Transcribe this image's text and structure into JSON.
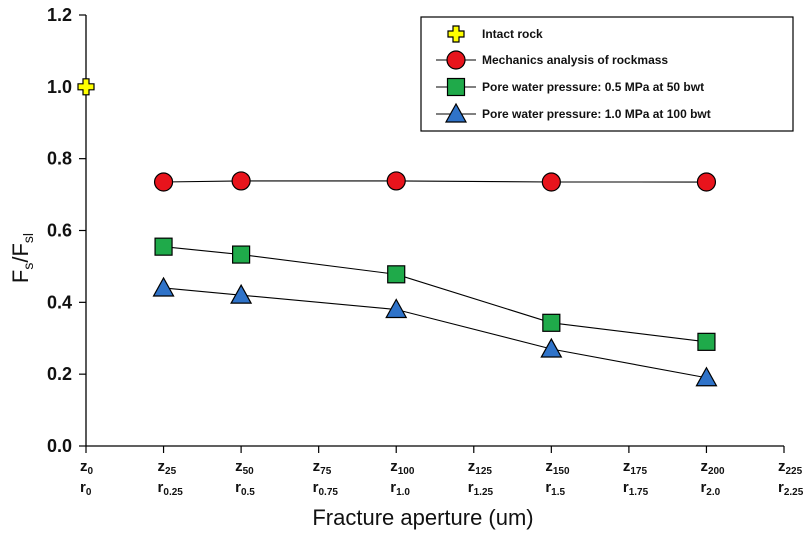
{
  "chart_data": {
    "type": "line",
    "x": [
      0,
      25,
      50,
      75,
      100,
      125,
      150,
      175,
      200,
      225
    ],
    "x_tick_labels": [
      {
        "z": "z",
        "z_sub": "0",
        "r": "r",
        "r_sub": "0"
      },
      {
        "z": "z",
        "z_sub": "25",
        "r": "r",
        "r_sub": "0.25"
      },
      {
        "z": "z",
        "z_sub": "50",
        "r": "r",
        "r_sub": "0.5"
      },
      {
        "z": "z",
        "z_sub": "75",
        "r": "r",
        "r_sub": "0.75"
      },
      {
        "z": "z",
        "z_sub": "100",
        "r": "r",
        "r_sub": "1.0"
      },
      {
        "z": "z",
        "z_sub": "125",
        "r": "r",
        "r_sub": "1.25"
      },
      {
        "z": "z",
        "z_sub": "150",
        "r": "r",
        "r_sub": "1.5"
      },
      {
        "z": "z",
        "z_sub": "175",
        "r": "r",
        "r_sub": "1.75"
      },
      {
        "z": "z",
        "z_sub": "200",
        "r": "r",
        "r_sub": "2.0"
      },
      {
        "z": "z",
        "z_sub": "225",
        "r": "r",
        "r_sub": "2.25"
      }
    ],
    "xlabel": "Fracture aperture (um)",
    "ylabel": {
      "main": "F",
      "sub1": "s",
      "slash": "/F",
      "sub2": "sl"
    },
    "xlim": [
      0,
      225
    ],
    "ylim": [
      0.0,
      1.2
    ],
    "y_ticks": [
      "0.0",
      "0.2",
      "0.4",
      "0.6",
      "0.8",
      "1.0",
      "1.2"
    ],
    "grid": false,
    "legend_position": "top-right",
    "series": [
      {
        "name": "Intact rock",
        "marker": "plus",
        "color": "#ffff00",
        "connect": false,
        "x": [
          0
        ],
        "y": [
          1.0
        ]
      },
      {
        "name": "Mechanics analysis of rockmass",
        "marker": "circle",
        "color": "#e8141c",
        "connect": true,
        "x": [
          25,
          50,
          100,
          150,
          200
        ],
        "y": [
          0.735,
          0.738,
          0.738,
          0.735,
          0.735
        ]
      },
      {
        "name": "Pore water pressure: 0.5 MPa at 50 bwt",
        "marker": "square",
        "color": "#1faa4a",
        "connect": true,
        "x": [
          25,
          50,
          100,
          150,
          200
        ],
        "y": [
          0.555,
          0.533,
          0.478,
          0.343,
          0.29
        ]
      },
      {
        "name": "Pore water pressure: 1.0 MPa at 100 bwt",
        "marker": "triangle",
        "color": "#2f73c9",
        "connect": true,
        "x": [
          25,
          50,
          100,
          150,
          200
        ],
        "y": [
          0.44,
          0.42,
          0.38,
          0.27,
          0.19
        ]
      }
    ]
  }
}
